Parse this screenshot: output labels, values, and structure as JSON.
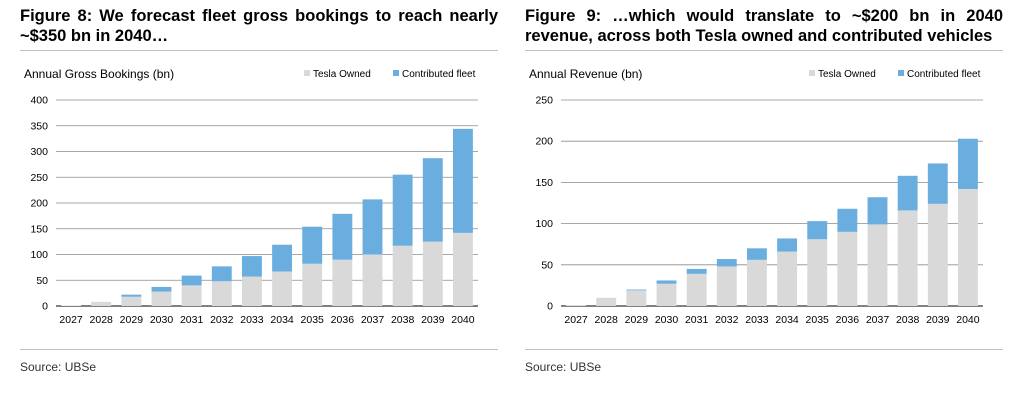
{
  "colors": {
    "owned": "#d9d9d9",
    "contributed": "#6aaee0",
    "gridline": "#8c8c8c"
  },
  "figures": [
    {
      "title": "Figure 8: We forecast fleet gross bookings to reach nearly ~$350 bn in 2040…",
      "source": "Source: UBSe"
    },
    {
      "title": "Figure 9: …which would translate to ~$200 bn in 2040 revenue, across both Tesla owned and contributed vehicles",
      "source": "Source: UBSe"
    }
  ],
  "chart_data": [
    {
      "type": "bar",
      "stacked": true,
      "ylabel": "Annual Gross Bookings (bn)",
      "categories": [
        "2027",
        "2028",
        "2029",
        "2030",
        "2031",
        "2032",
        "2033",
        "2034",
        "2035",
        "2036",
        "2037",
        "2038",
        "2039",
        "2040"
      ],
      "series": [
        {
          "name": "Tesla Owned",
          "values": [
            1,
            8,
            18,
            28,
            40,
            48,
            57,
            67,
            82,
            90,
            100,
            117,
            125,
            142
          ]
        },
        {
          "name": "Contributed fleet",
          "values": [
            0,
            0,
            4,
            9,
            19,
            29,
            40,
            52,
            72,
            89,
            107,
            138,
            162,
            202
          ]
        }
      ],
      "ylim": [
        0,
        400
      ],
      "yticks": [
        0,
        50,
        100,
        150,
        200,
        250,
        300,
        350,
        400
      ],
      "grid": true,
      "legend": "top-right"
    },
    {
      "type": "bar",
      "stacked": true,
      "ylabel": "Annual Revenue (bn)",
      "categories": [
        "2027",
        "2028",
        "2029",
        "2030",
        "2031",
        "2032",
        "2033",
        "2034",
        "2035",
        "2036",
        "2037",
        "2038",
        "2039",
        "2040"
      ],
      "series": [
        {
          "name": "Tesla Owned",
          "values": [
            1,
            10,
            19,
            27,
            39,
            48,
            56,
            66,
            81,
            90,
            99,
            116,
            124,
            142
          ]
        },
        {
          "name": "Contributed fleet",
          "values": [
            0,
            0,
            1,
            4,
            6,
            9,
            14,
            16,
            22,
            28,
            33,
            42,
            49,
            61
          ]
        }
      ],
      "ylim": [
        0,
        250
      ],
      "yticks": [
        0,
        50,
        100,
        150,
        200,
        250
      ],
      "grid": true,
      "legend": "top-right"
    }
  ]
}
